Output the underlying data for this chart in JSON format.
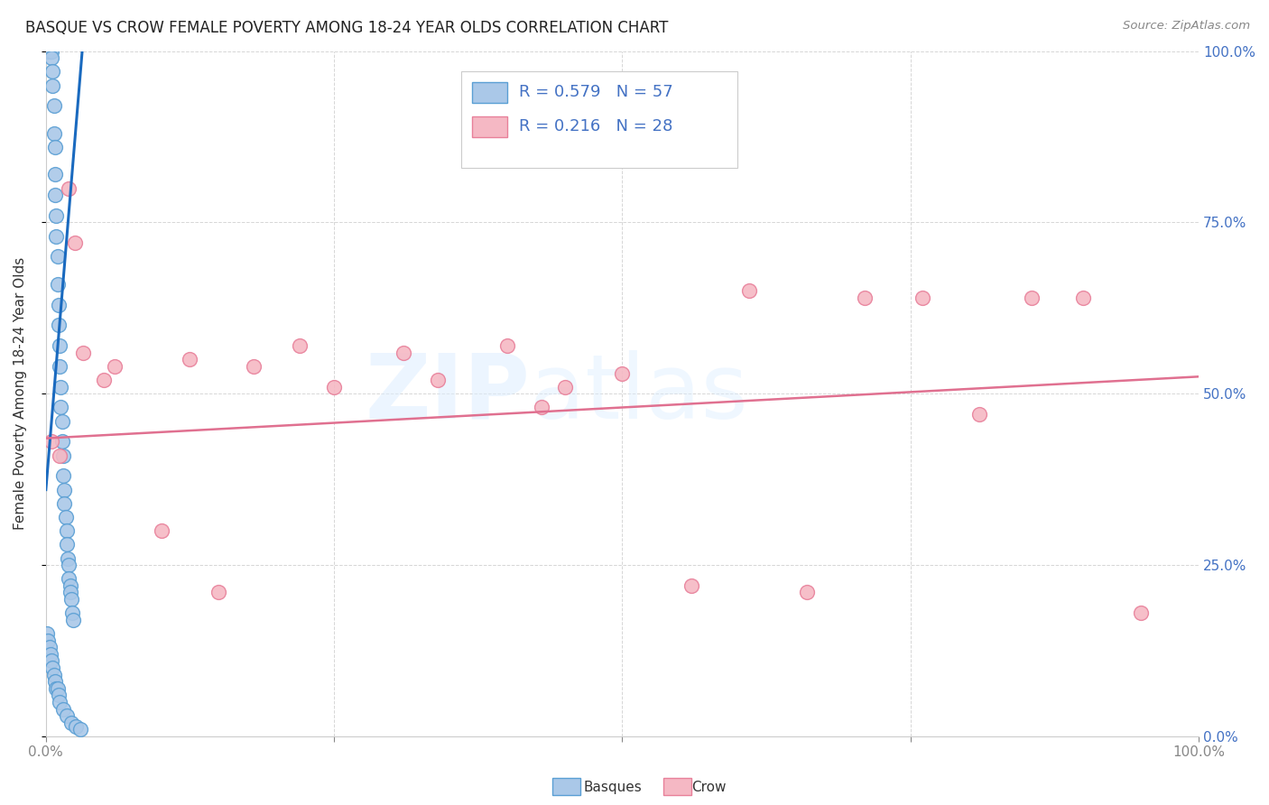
{
  "title": "BASQUE VS CROW FEMALE POVERTY AMONG 18-24 YEAR OLDS CORRELATION CHART",
  "source": "Source: ZipAtlas.com",
  "ylabel": "Female Poverty Among 18-24 Year Olds",
  "xlim": [
    0.0,
    1.0
  ],
  "ylim": [
    0.0,
    1.0
  ],
  "yticks": [
    0.0,
    0.25,
    0.5,
    0.75,
    1.0
  ],
  "yticklabels": [
    "0.0%",
    "25.0%",
    "50.0%",
    "75.0%",
    "100.0%"
  ],
  "watermark_zip": "ZIP",
  "watermark_atlas": "atlas",
  "legend_R_basque": "R = 0.579",
  "legend_N_basque": "N = 57",
  "legend_R_crow": "R = 0.216",
  "legend_N_crow": "N = 28",
  "basque_fill": "#aac8e8",
  "crow_fill": "#f5b8c4",
  "basque_edge": "#5a9fd4",
  "crow_edge": "#e8809a",
  "basque_line_color": "#1a6abf",
  "crow_line_color": "#e07090",
  "tick_label_color": "#4472c4",
  "basque_x": [
    0.002,
    0.003,
    0.004,
    0.004,
    0.005,
    0.005,
    0.006,
    0.006,
    0.007,
    0.007,
    0.008,
    0.008,
    0.008,
    0.009,
    0.009,
    0.01,
    0.01,
    0.011,
    0.011,
    0.012,
    0.012,
    0.013,
    0.013,
    0.014,
    0.014,
    0.015,
    0.015,
    0.016,
    0.016,
    0.017,
    0.018,
    0.018,
    0.019,
    0.02,
    0.02,
    0.021,
    0.021,
    0.022,
    0.023,
    0.024,
    0.001,
    0.002,
    0.003,
    0.004,
    0.005,
    0.006,
    0.007,
    0.008,
    0.009,
    0.01,
    0.011,
    0.012,
    0.015,
    0.018,
    0.022,
    0.026,
    0.03
  ],
  "basque_y": [
    1.0,
    1.0,
    1.0,
    1.0,
    1.0,
    0.99,
    0.97,
    0.95,
    0.92,
    0.88,
    0.86,
    0.82,
    0.79,
    0.76,
    0.73,
    0.7,
    0.66,
    0.63,
    0.6,
    0.57,
    0.54,
    0.51,
    0.48,
    0.46,
    0.43,
    0.41,
    0.38,
    0.36,
    0.34,
    0.32,
    0.3,
    0.28,
    0.26,
    0.25,
    0.23,
    0.22,
    0.21,
    0.2,
    0.18,
    0.17,
    0.15,
    0.14,
    0.13,
    0.12,
    0.11,
    0.1,
    0.09,
    0.08,
    0.07,
    0.07,
    0.06,
    0.05,
    0.04,
    0.03,
    0.02,
    0.015,
    0.01
  ],
  "crow_x": [
    0.005,
    0.012,
    0.02,
    0.025,
    0.032,
    0.05,
    0.06,
    0.1,
    0.125,
    0.15,
    0.18,
    0.22,
    0.25,
    0.31,
    0.34,
    0.4,
    0.43,
    0.45,
    0.5,
    0.56,
    0.61,
    0.66,
    0.71,
    0.76,
    0.81,
    0.855,
    0.9,
    0.95
  ],
  "crow_y": [
    0.43,
    0.41,
    0.8,
    0.72,
    0.56,
    0.52,
    0.54,
    0.3,
    0.55,
    0.21,
    0.54,
    0.57,
    0.51,
    0.56,
    0.52,
    0.57,
    0.48,
    0.51,
    0.53,
    0.22,
    0.65,
    0.21,
    0.64,
    0.64,
    0.47,
    0.64,
    0.64,
    0.18
  ],
  "basque_trend_x": [
    0.0,
    0.032
  ],
  "basque_trend_y": [
    0.36,
    1.01
  ],
  "crow_trend_x": [
    0.0,
    1.0
  ],
  "crow_trend_y": [
    0.435,
    0.525
  ]
}
